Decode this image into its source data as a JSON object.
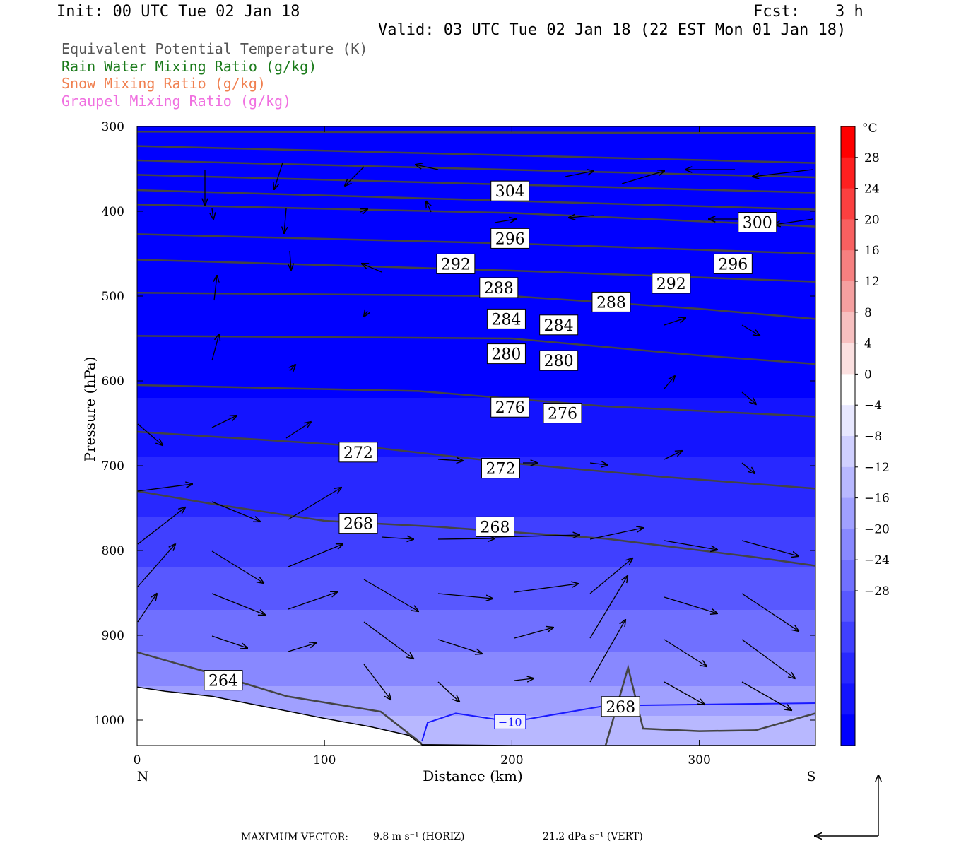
{
  "header": {
    "init": "Init: 00 UTC Tue 02 Jan 18",
    "fcst_label": "Fcst:",
    "fcst_value": "3 h",
    "valid": "Valid: 03 UTC Tue 02 Jan 18 (22 EST Mon 01 Jan 18)"
  },
  "legend": [
    {
      "label": "Equivalent Potential Temperature (K)",
      "color": "#555555"
    },
    {
      "label": "Rain Water Mixing Ratio (g/kg)",
      "color": "#1a7a1a"
    },
    {
      "label": "Snow Mixing Ratio (g/kg)",
      "color": "#f08050"
    },
    {
      "label": "Graupel Mixing Ratio (g/kg)",
      "color": "#f070e0"
    }
  ],
  "chart_data": {
    "type": "heatmap",
    "xlabel": "Distance (km)",
    "ylabel": "Pressure (hPa)",
    "xlim": [
      0,
      362
    ],
    "ylim": [
      1030,
      300
    ],
    "x_ticks": [
      0,
      100,
      200,
      300
    ],
    "y_ticks": [
      300,
      400,
      500,
      600,
      700,
      800,
      900,
      1000
    ],
    "x_end_labels": {
      "left": "N",
      "right": "S"
    },
    "colorbar": {
      "unit": "°C",
      "tick_labels": [
        "28",
        "24",
        "20",
        "16",
        "12",
        "8",
        "4",
        "0",
        "−4",
        "−8",
        "−12",
        "−16",
        "−20",
        "−24",
        "−28"
      ],
      "colors": [
        "#ff0000",
        "#fe2020",
        "#fb4040",
        "#f86060",
        "#f68080",
        "#f5a0a0",
        "#f7c0c0",
        "#fbe0e0",
        "#ffffff",
        "#e8e8ff",
        "#d0d0ff",
        "#b8b8ff",
        "#a0a0ff",
        "#8888ff",
        "#7070ff",
        "#5858ff",
        "#4040ff",
        "#2828ff",
        "#1414ff",
        "#0000ff"
      ]
    },
    "theta_e_labels": [
      {
        "text": "304",
        "x": 199,
        "p": 376
      },
      {
        "text": "300",
        "x": 331,
        "p": 413
      },
      {
        "text": "296",
        "x": 199,
        "p": 432
      },
      {
        "text": "296",
        "x": 318,
        "p": 462
      },
      {
        "text": "292",
        "x": 170,
        "p": 462
      },
      {
        "text": "292",
        "x": 285,
        "p": 485
      },
      {
        "text": "288",
        "x": 193,
        "p": 490
      },
      {
        "text": "288",
        "x": 253,
        "p": 507
      },
      {
        "text": "284",
        "x": 197,
        "p": 527
      },
      {
        "text": "284",
        "x": 225,
        "p": 534
      },
      {
        "text": "280",
        "x": 197,
        "p": 568
      },
      {
        "text": "280",
        "x": 225,
        "p": 576
      },
      {
        "text": "276",
        "x": 199,
        "p": 631
      },
      {
        "text": "276",
        "x": 227,
        "p": 638
      },
      {
        "text": "272",
        "x": 118,
        "p": 684
      },
      {
        "text": "272",
        "x": 194,
        "p": 703
      },
      {
        "text": "268",
        "x": 118,
        "p": 768
      },
      {
        "text": "268",
        "x": 191,
        "p": 772
      },
      {
        "text": "268",
        "x": 258,
        "p": 984
      },
      {
        "text": "264",
        "x": 46,
        "p": 953
      }
    ],
    "temp_label": {
      "text": "−10",
      "x": 199,
      "p": 1002
    },
    "max_vector": {
      "label": "MAXIMUM VECTOR:",
      "horiz": "9.8 m s⁻¹ (HORIZ)",
      "vert": "21.2 dPa s⁻¹ (VERT)"
    }
  }
}
